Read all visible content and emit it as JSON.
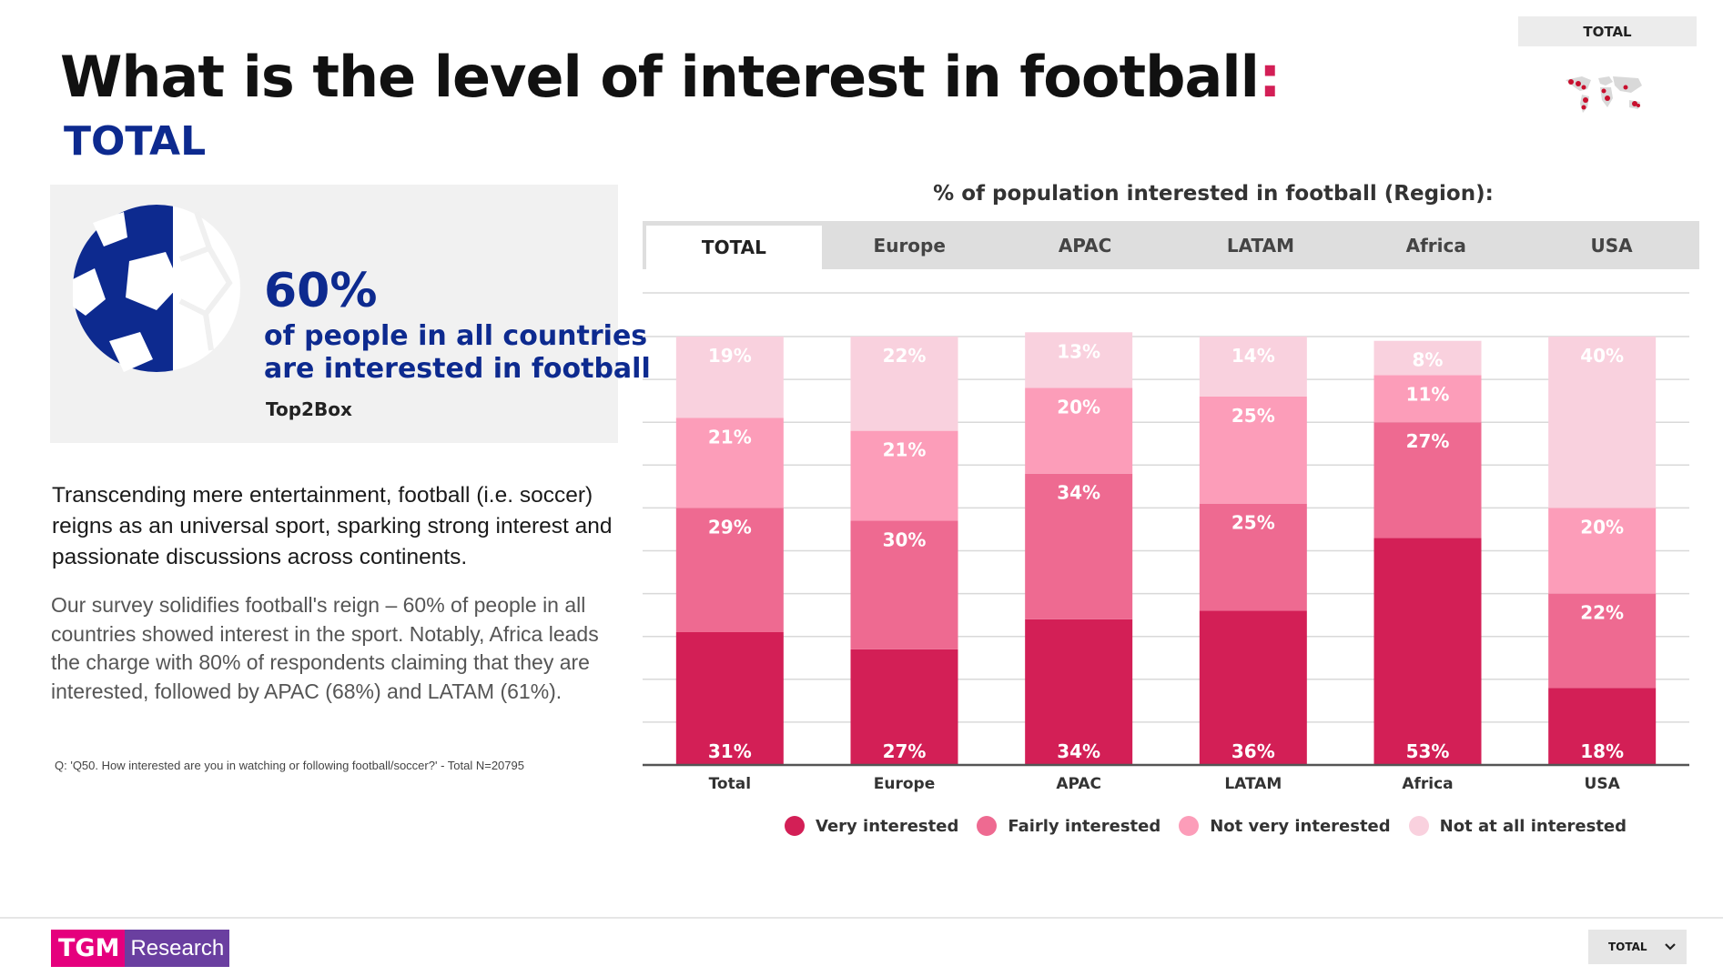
{
  "header": {
    "title": "What is the level of interest in football",
    "title_colon": ":",
    "subtitle": "TOTAL",
    "region_selector": "TOTAL"
  },
  "kpi": {
    "value": "60%",
    "line1": "of people in all countries",
    "line2": "are interested in football",
    "note": "Top2Box"
  },
  "text": {
    "intro": "Transcending mere entertainment, football (i.e. soccer) reigns as an universal sport, sparking strong interest and passionate discussions across continents.",
    "body": "Our survey solidifies football's reign – 60% of people in all countries showed interest in the sport. Notably, Africa leads the charge with 80% of respondents claiming that they are interested, followed by APAC (68%) and LATAM (61%).",
    "footnote": "Q: 'Q50. How interested are you in watching or following football/soccer?' - Total N=20795"
  },
  "tabs": [
    {
      "label": "TOTAL",
      "active": true
    },
    {
      "label": "Europe",
      "active": false
    },
    {
      "label": "APAC",
      "active": false
    },
    {
      "label": "LATAM",
      "active": false
    },
    {
      "label": "Africa",
      "active": false
    },
    {
      "label": "USA",
      "active": false
    }
  ],
  "chart_data": {
    "type": "bar",
    "stacked": true,
    "title": "% of population interested in football (Region):",
    "categories": [
      "Total",
      "Europe",
      "APAC",
      "LATAM",
      "Africa",
      "USA"
    ],
    "series": [
      {
        "name": "Very interested",
        "values": [
          31,
          27,
          34,
          36,
          53,
          18
        ],
        "color": "#d31f56"
      },
      {
        "name": "Fairly interested",
        "values": [
          29,
          30,
          34,
          25,
          27,
          22
        ],
        "color": "#ee6a91"
      },
      {
        "name": "Not very interested",
        "values": [
          21,
          21,
          20,
          25,
          11,
          20
        ],
        "color": "#fc9db9"
      },
      {
        "name": "Not at all interested",
        "values": [
          19,
          22,
          13,
          14,
          8,
          40
        ],
        "color": "#f9d1de"
      }
    ],
    "ylim": [
      0,
      100
    ],
    "grid": true,
    "legend_position": "bottom"
  },
  "footer": {
    "logo_left": "TGM",
    "logo_right": "Research",
    "selector": "TOTAL",
    "selector_icon": "chevron-down-icon"
  }
}
